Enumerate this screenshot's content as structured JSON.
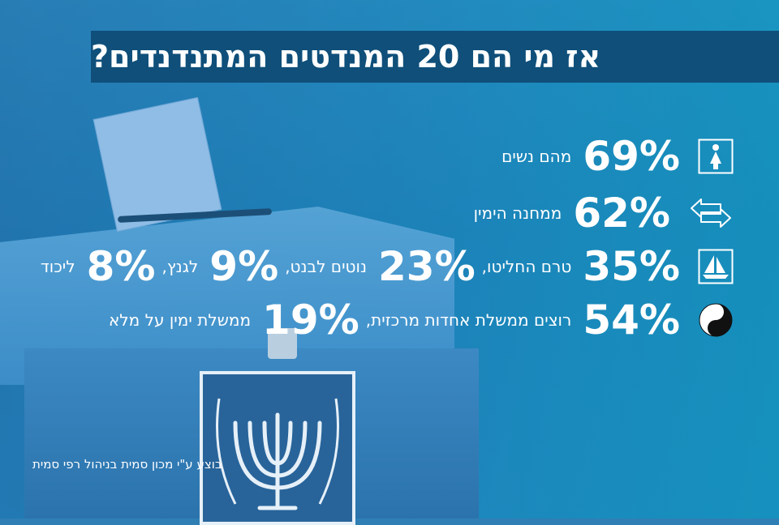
{
  "title": "אז מי הם 20 המנדטים המתנדנדים?",
  "rows": [
    {
      "icon": "woman-icon",
      "items": [
        {
          "value": "69%",
          "label": "מהם נשים"
        }
      ]
    },
    {
      "icon": "arrows-left-right-icon",
      "items": [
        {
          "value": "62%",
          "label": "ממחנה הימין"
        }
      ]
    },
    {
      "icon": "boat-icon",
      "items": [
        {
          "value": "35%",
          "label": "טרם החליטו,"
        },
        {
          "value": "23%",
          "label": "נוטים לבנט,"
        },
        {
          "value": "9%",
          "label": "לגנץ,"
        },
        {
          "value": "8%",
          "label": "ליכוד"
        }
      ]
    },
    {
      "icon": "yin-yang-icon",
      "items": [
        {
          "value": "54%",
          "label": "רוצים ממשלת אחדות מרכזית,"
        },
        {
          "value": "19%",
          "label": "ממשלת ימין על מלא"
        }
      ]
    }
  ],
  "credit": "בוצע ע\"י מכון סמית בניהול רפי סמית",
  "colors": {
    "title_bar": "#0f4f7a",
    "text": "#ffffff",
    "background": "#2f7fb5"
  }
}
